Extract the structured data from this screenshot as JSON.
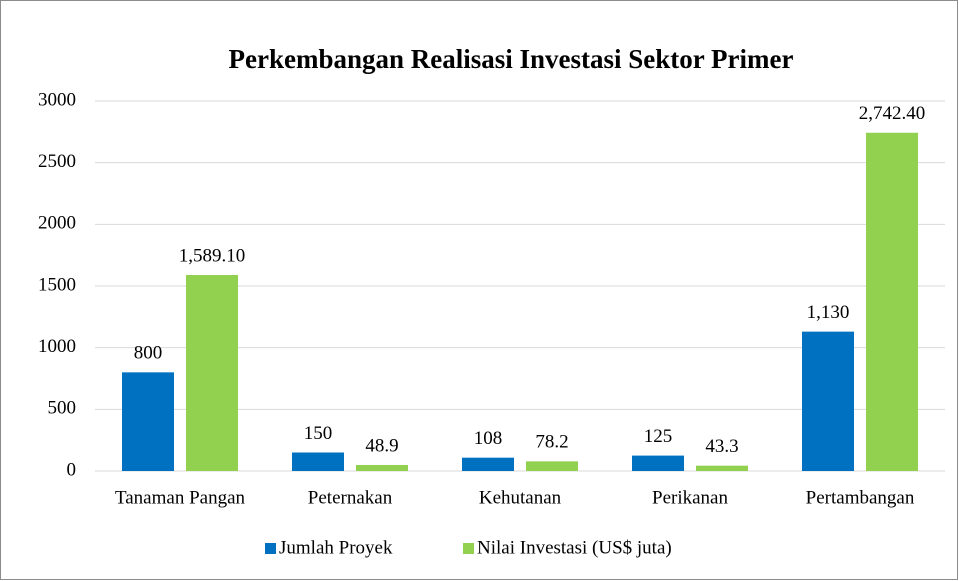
{
  "chart_data": {
    "type": "bar",
    "title": "Perkembangan Realisasi Investasi Sektor Primer",
    "categories": [
      "Tanaman Pangan",
      "Peternakan",
      "Kehutanan",
      "Perikanan",
      "Pertambangan"
    ],
    "series": [
      {
        "name": "Jumlah Proyek",
        "color": "#0070c0",
        "values": [
          800,
          150,
          108,
          125,
          1130
        ],
        "value_labels": [
          "800",
          "150",
          "108",
          "125",
          "1,130"
        ]
      },
      {
        "name": "Nilai Investasi (US$ juta)",
        "color": "#92d050",
        "values": [
          1589.1,
          48.9,
          78.2,
          43.3,
          2742.4
        ],
        "value_labels": [
          "1,589.10",
          "48.9",
          "78.2",
          "43.3",
          "2,742.40"
        ]
      }
    ],
    "ylim": [
      0,
      3000
    ],
    "yticks": [
      0,
      500,
      1000,
      1500,
      2000,
      2500,
      3000
    ],
    "grid": true,
    "legend": "bottom"
  }
}
